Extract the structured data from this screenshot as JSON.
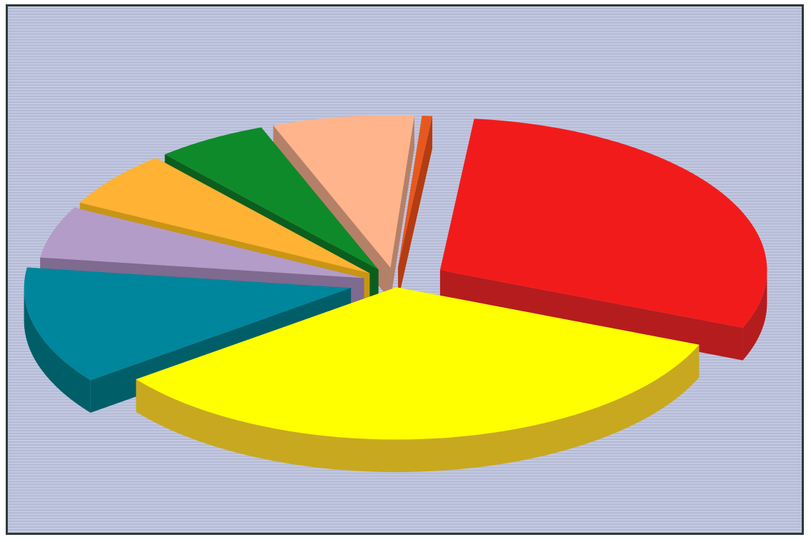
{
  "chart_data": {
    "type": "pie",
    "style": "3d-exploded",
    "title": "",
    "legend": "none",
    "data_labels": "none",
    "background_color": "#bcc2dc",
    "slices": [
      {
        "value": 29.5,
        "color": "#f21b1b",
        "side_color": "#b51c1e"
      },
      {
        "value": 33.5,
        "color": "#ffff00",
        "side_color": "#c8a81f"
      },
      {
        "value": 12.5,
        "color": "#00869c",
        "side_color": "#005e68"
      },
      {
        "value": 5.5,
        "color": "#b49cc8",
        "side_color": "#7f6a90"
      },
      {
        "value": 6.0,
        "color": "#ffb233",
        "side_color": "#c99514"
      },
      {
        "value": 5.5,
        "color": "#0f8a2a",
        "side_color": "#0b5e1e"
      },
      {
        "value": 7.0,
        "color": "#ffb48c",
        "side_color": "#b58068"
      },
      {
        "value": 0.5,
        "color": "#e8581e",
        "side_color": "#b33c12"
      }
    ]
  }
}
